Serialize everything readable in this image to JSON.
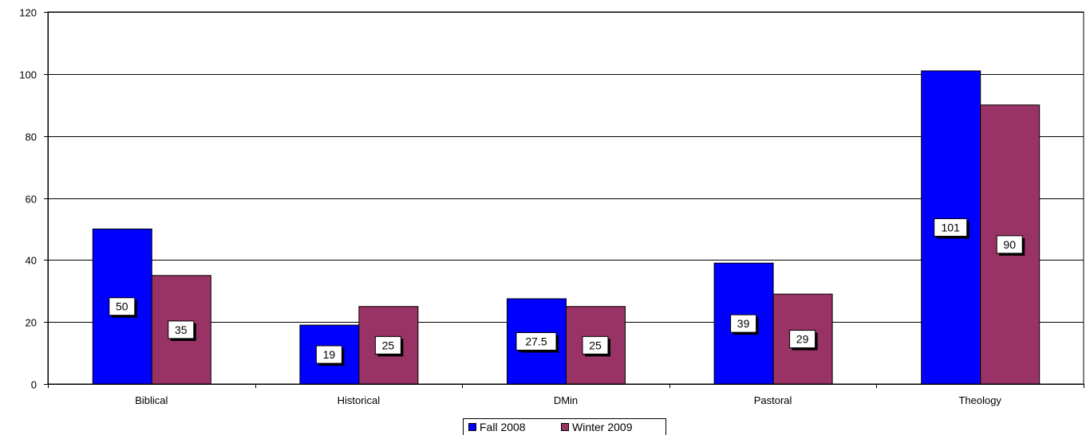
{
  "chart_data": {
    "type": "bar",
    "categories": [
      "Biblical",
      "Historical",
      "DMin",
      "Pastoral",
      "Theology"
    ],
    "series": [
      {
        "name": "Fall 2008",
        "values": [
          50,
          19,
          27.5,
          39,
          101
        ],
        "color": "#0000FF"
      },
      {
        "name": "Winter 2009",
        "values": [
          35,
          25,
          25,
          29,
          90
        ],
        "color": "#993366"
      }
    ],
    "data_labels": [
      [
        "50",
        "19",
        "27.5",
        "39",
        "101"
      ],
      [
        "35",
        "25",
        "25",
        "29",
        "90"
      ]
    ],
    "yticks": [
      "0",
      "20",
      "40",
      "60",
      "80",
      "100",
      "120"
    ],
    "ylim": [
      0,
      120
    ],
    "grid": true,
    "legend_position": "bottom"
  }
}
